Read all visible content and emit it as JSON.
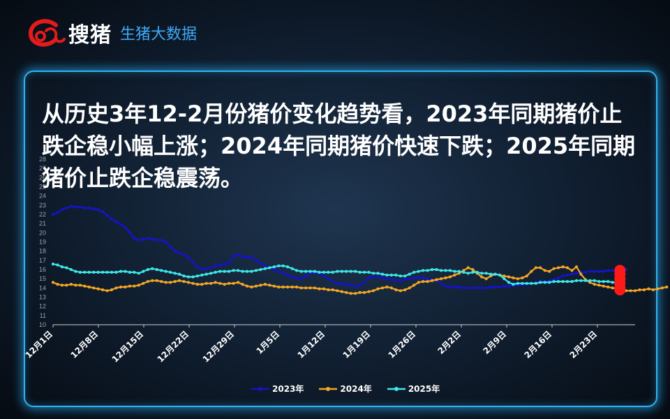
{
  "header": {
    "brand": "搜猪",
    "subtitle": "生猪大数据"
  },
  "headline": "从历史3年12-2月份猪价变化趋势看，2023年同期猪价止跌企稳小幅上涨；2024年同期猪价快速下跌；2025年同期猪价止跌企稳震荡。",
  "chart_data": {
    "type": "line",
    "ylim": [
      10,
      28
    ],
    "yticks": [
      10,
      11,
      12,
      13,
      14,
      15,
      16,
      17,
      18,
      19,
      20,
      21,
      22,
      23,
      24,
      25,
      26,
      27,
      28
    ],
    "x_tick_labels": [
      "12月1日",
      "12月8日",
      "12月15日",
      "12月22日",
      "12月29日",
      "1月5日",
      "1月12日",
      "1月19日",
      "1月26日",
      "2月2日",
      "2月9日",
      "2月16日",
      "2月23日"
    ],
    "grid": false,
    "legend_position": "bottom",
    "series": [
      {
        "name": "2023年",
        "color": "#1414c8",
        "values": [
          22.0,
          22.2,
          22.5,
          22.7,
          22.9,
          22.8,
          22.8,
          22.7,
          22.7,
          22.6,
          22.5,
          22.3,
          21.9,
          21.5,
          21.2,
          20.9,
          20.6,
          20.0,
          19.4,
          19.2,
          19.3,
          19.4,
          19.3,
          19.2,
          19.2,
          19.0,
          18.5,
          18.0,
          17.8,
          17.6,
          17.3,
          16.8,
          16.3,
          16.0,
          16.1,
          16.2,
          16.4,
          16.5,
          16.6,
          16.7,
          17.5,
          17.6,
          17.4,
          17.3,
          17.4,
          17.0,
          16.7,
          16.4,
          16.2,
          16.0,
          15.8,
          15.6,
          15.4,
          15.2,
          15.0,
          15.0,
          15.3,
          15.6,
          15.7,
          15.6,
          15.3,
          15.0,
          14.7,
          14.5,
          14.4,
          14.4,
          14.3,
          14.2,
          14.3,
          14.6,
          15.1,
          15.2,
          15.2,
          15.1,
          15.0,
          14.9,
          14.8,
          14.8,
          14.9,
          15.0,
          15.1,
          15.1,
          15.1,
          15.0,
          14.9,
          14.8,
          14.5,
          14.2,
          14.1,
          14.1,
          14.1,
          14.0,
          14.0,
          14.0,
          14.0,
          14.0,
          14.0,
          14.1,
          14.1,
          14.1,
          14.2,
          14.2,
          14.3,
          14.3,
          14.4,
          14.4,
          14.5,
          14.6,
          14.7,
          14.7,
          14.8,
          14.9,
          15.1,
          15.3,
          15.4,
          15.5,
          15.6,
          15.7,
          15.7,
          15.8,
          15.8,
          15.8,
          15.8,
          15.9,
          15.9,
          15.9,
          16.0,
          16.0
        ]
      },
      {
        "name": "2024年",
        "color": "#f5a623",
        "values": [
          14.6,
          14.4,
          14.3,
          14.3,
          14.4,
          14.3,
          14.3,
          14.2,
          14.1,
          14.0,
          13.9,
          13.8,
          13.7,
          13.8,
          14.0,
          14.1,
          14.1,
          14.2,
          14.2,
          14.3,
          14.5,
          14.7,
          14.8,
          14.8,
          14.7,
          14.6,
          14.6,
          14.7,
          14.8,
          14.7,
          14.6,
          14.5,
          14.4,
          14.4,
          14.5,
          14.5,
          14.6,
          14.5,
          14.4,
          14.5,
          14.5,
          14.6,
          14.4,
          14.2,
          14.1,
          14.2,
          14.3,
          14.4,
          14.3,
          14.2,
          14.1,
          14.1,
          14.1,
          14.1,
          14.1,
          14.0,
          14.0,
          14.0,
          14.0,
          13.9,
          13.9,
          13.8,
          13.8,
          13.7,
          13.6,
          13.5,
          13.4,
          13.4,
          13.5,
          13.5,
          13.6,
          13.7,
          13.9,
          14.0,
          14.1,
          14.0,
          13.8,
          13.7,
          13.8,
          14.0,
          14.3,
          14.6,
          14.7,
          14.7,
          14.8,
          14.9,
          15.0,
          15.1,
          15.2,
          15.4,
          15.6,
          15.9,
          16.2,
          16.0,
          15.6,
          15.2,
          15.0,
          15.3,
          15.5,
          15.4,
          15.3,
          15.2,
          15.1,
          15.0,
          15.1,
          15.3,
          15.8,
          16.2,
          16.2,
          15.9,
          15.8,
          16.1,
          16.2,
          16.3,
          16.2,
          15.9,
          16.3,
          15.5,
          14.9,
          14.6,
          14.4,
          14.3,
          14.2,
          14.1,
          14.0,
          13.9,
          13.8,
          13.7,
          13.7,
          13.7,
          13.8,
          13.8,
          13.9,
          13.8,
          13.9,
          14.0,
          14.1
        ]
      },
      {
        "name": "2025年",
        "color": "#3ee8e8",
        "values": [
          16.6,
          16.5,
          16.3,
          16.2,
          16.0,
          15.8,
          15.7,
          15.7,
          15.7,
          15.7,
          15.7,
          15.7,
          15.7,
          15.7,
          15.7,
          15.8,
          15.8,
          15.7,
          15.7,
          15.6,
          15.8,
          16.0,
          16.1,
          16.0,
          15.9,
          15.8,
          15.7,
          15.6,
          15.5,
          15.3,
          15.2,
          15.2,
          15.3,
          15.4,
          15.5,
          15.6,
          15.7,
          15.8,
          15.8,
          15.8,
          15.9,
          15.9,
          15.8,
          15.8,
          15.8,
          15.9,
          16.0,
          16.1,
          16.2,
          16.3,
          16.4,
          16.4,
          16.3,
          16.1,
          15.9,
          15.8,
          15.8,
          15.8,
          15.8,
          15.7,
          15.7,
          15.7,
          15.7,
          15.8,
          15.8,
          15.8,
          15.8,
          15.8,
          15.7,
          15.7,
          15.7,
          15.6,
          15.6,
          15.5,
          15.4,
          15.4,
          15.4,
          15.3,
          15.3,
          15.5,
          15.7,
          15.8,
          15.9,
          15.9,
          16.0,
          16.0,
          15.9,
          15.9,
          15.9,
          15.8,
          15.8,
          15.7,
          15.6,
          15.7,
          15.7,
          15.6,
          15.6,
          15.5,
          15.5,
          15.4,
          15.0,
          14.6,
          14.4,
          14.5,
          14.5,
          14.5,
          14.5,
          14.5,
          14.6,
          14.6,
          14.6,
          14.7,
          14.7,
          14.7,
          14.7,
          14.7,
          14.8,
          14.8,
          14.8,
          14.8,
          14.8,
          14.7,
          14.7,
          14.7,
          14.6,
          14.6,
          14.6
        ]
      }
    ],
    "highlight": {
      "series": "2025年",
      "color": "#ff1a1a",
      "values": [
        15.9,
        15.5,
        15.0,
        14.5,
        14.0,
        13.8
      ]
    }
  }
}
